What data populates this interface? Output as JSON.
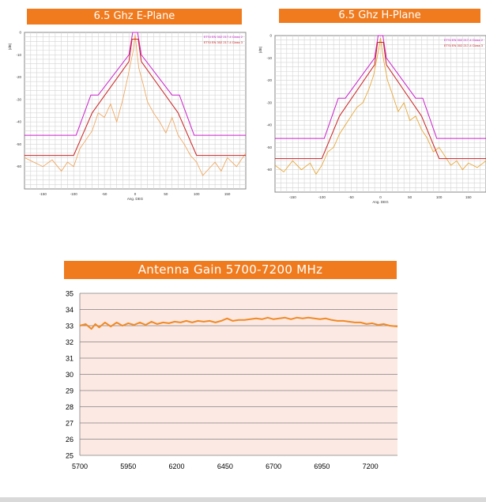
{
  "chart_data": [
    {
      "type": "line",
      "title": "6.5 Ghz E-Plane",
      "xlabel": "Ang. DEG",
      "ylabel": "(dB)",
      "xlim": [
        -180,
        180
      ],
      "ylim": [
        -70,
        0
      ],
      "x_ticks": [
        "-150",
        "-100",
        "-50",
        "0",
        "50",
        "100",
        "150"
      ],
      "y_ticks": [
        "0",
        "-10",
        "-20",
        "-30",
        "-40",
        "-50",
        "-60"
      ],
      "grid": true,
      "legend": "top-right",
      "series": [
        {
          "name": "ETSI EN 302 217-4 Class 2",
          "color": "#cc22cc",
          "x": [
            -180,
            -96,
            -72,
            -60,
            -10,
            -4,
            4,
            10,
            60,
            72,
            96,
            180
          ],
          "y": [
            -46,
            -46,
            -28,
            -28,
            -10,
            0,
            0,
            -10,
            -28,
            -28,
            -46,
            -46
          ]
        },
        {
          "name": "ETSI EN 302 217-4 Class 3",
          "color": "#cc2222",
          "x": [
            -180,
            -100,
            -70,
            -10,
            -5,
            5,
            10,
            70,
            100,
            180
          ],
          "y": [
            -55,
            -55,
            -36,
            -13,
            -3,
            -3,
            -13,
            -36,
            -55,
            -55
          ]
        },
        {
          "name": "",
          "color": "#f0a050",
          "x": [
            -180,
            -165,
            -150,
            -135,
            -120,
            -110,
            -100,
            -90,
            -80,
            -70,
            -60,
            -50,
            -40,
            -30,
            -20,
            -12,
            -6,
            -3,
            0,
            3,
            6,
            12,
            20,
            30,
            40,
            50,
            60,
            70,
            80,
            90,
            100,
            110,
            120,
            130,
            140,
            150,
            165,
            180
          ],
          "y": [
            -56,
            -58,
            -60,
            -57,
            -62,
            -58,
            -60,
            -52,
            -48,
            -44,
            -36,
            -38,
            -32,
            -40,
            -30,
            -20,
            -12,
            -8,
            -1,
            -9,
            -16,
            -22,
            -31,
            -36,
            -40,
            -45,
            -38,
            -46,
            -50,
            -55,
            -58,
            -64,
            -61,
            -58,
            -62,
            -56,
            -60,
            -54
          ]
        }
      ]
    },
    {
      "type": "line",
      "title": "6.5 Ghz H-Plane",
      "xlabel": "Ang. DEG",
      "ylabel": "(dB)",
      "xlim": [
        -180,
        180
      ],
      "ylim": [
        -70,
        0
      ],
      "x_ticks": [
        "-150",
        "-100",
        "-50",
        "0",
        "50",
        "100",
        "150"
      ],
      "y_ticks": [
        "0",
        "-10",
        "-20",
        "-30",
        "-40",
        "-50",
        "-60"
      ],
      "grid": true,
      "legend": "top-right",
      "series": [
        {
          "name": "ETSI EN 302 217-4 Class 2",
          "color": "#cc22cc",
          "x": [
            -180,
            -96,
            -72,
            -60,
            -10,
            -4,
            4,
            10,
            60,
            72,
            96,
            180
          ],
          "y": [
            -46,
            -46,
            -28,
            -28,
            -10,
            0,
            0,
            -10,
            -28,
            -28,
            -46,
            -46
          ]
        },
        {
          "name": "ETSI EN 302 217-4 Class 3",
          "color": "#cc2222",
          "x": [
            -180,
            -100,
            -70,
            -10,
            -5,
            5,
            10,
            70,
            100,
            180
          ],
          "y": [
            -55,
            -55,
            -36,
            -13,
            -3,
            -3,
            -13,
            -36,
            -55,
            -55
          ]
        },
        {
          "name": "",
          "color": "#e8a020",
          "x": [
            -180,
            -165,
            -150,
            -135,
            -120,
            -110,
            -100,
            -90,
            -80,
            -70,
            -60,
            -50,
            -40,
            -30,
            -20,
            -12,
            -6,
            -3,
            0,
            3,
            6,
            12,
            20,
            30,
            40,
            50,
            60,
            70,
            80,
            90,
            100,
            110,
            120,
            130,
            140,
            150,
            165,
            180
          ],
          "y": [
            -58,
            -61,
            -56,
            -60,
            -57,
            -62,
            -58,
            -52,
            -50,
            -44,
            -40,
            -36,
            -32,
            -30,
            -24,
            -18,
            -10,
            -6,
            -1,
            -7,
            -12,
            -20,
            -26,
            -34,
            -30,
            -38,
            -36,
            -42,
            -46,
            -52,
            -50,
            -54,
            -58,
            -56,
            -60,
            -57,
            -59,
            -56
          ]
        }
      ]
    },
    {
      "type": "line",
      "title": "Antenna Gain 5700-7200 MHz",
      "xlabel": "",
      "ylabel": "",
      "xlim": [
        5700,
        7340
      ],
      "ylim": [
        25,
        35
      ],
      "x_ticks": [
        "5700",
        "5950",
        "6200",
        "6450",
        "6700",
        "6950",
        "7200"
      ],
      "y_ticks": [
        "35",
        "34",
        "33",
        "32",
        "31",
        "30",
        "29",
        "28",
        "27",
        "26",
        "25"
      ],
      "grid": true,
      "series": [
        {
          "name": "",
          "color": "#f08a24",
          "x": [
            5700,
            5730,
            5760,
            5780,
            5800,
            5830,
            5860,
            5890,
            5920,
            5950,
            5980,
            6010,
            6040,
            6070,
            6100,
            6130,
            6160,
            6190,
            6220,
            6250,
            6280,
            6310,
            6340,
            6370,
            6400,
            6430,
            6460,
            6490,
            6520,
            6550,
            6580,
            6610,
            6640,
            6670,
            6700,
            6730,
            6760,
            6790,
            6820,
            6850,
            6880,
            6910,
            6940,
            6970,
            7000,
            7030,
            7060,
            7090,
            7120,
            7150,
            7180,
            7210,
            7240,
            7270,
            7300,
            7340
          ],
          "y": [
            33.0,
            33.1,
            32.8,
            33.1,
            32.9,
            33.2,
            32.95,
            33.2,
            33.0,
            33.15,
            33.05,
            33.2,
            33.05,
            33.25,
            33.1,
            33.2,
            33.15,
            33.25,
            33.2,
            33.3,
            33.2,
            33.3,
            33.25,
            33.3,
            33.2,
            33.3,
            33.45,
            33.3,
            33.35,
            33.35,
            33.4,
            33.45,
            33.4,
            33.5,
            33.4,
            33.45,
            33.5,
            33.4,
            33.5,
            33.45,
            33.5,
            33.45,
            33.4,
            33.45,
            33.35,
            33.3,
            33.3,
            33.25,
            33.2,
            33.2,
            33.1,
            33.15,
            33.05,
            33.1,
            33.0,
            32.95
          ]
        }
      ]
    }
  ]
}
